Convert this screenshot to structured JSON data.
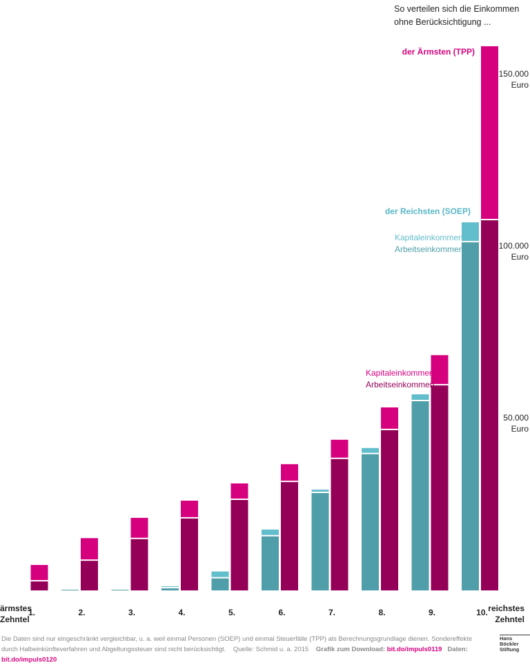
{
  "chart_data": {
    "type": "grouped-stacked-bar",
    "title": "So verteilen sich die Einkommen ohne Berücksichtigung ...",
    "categories": [
      "1.",
      "2.",
      "3.",
      "4.",
      "5.",
      "6.",
      "7.",
      "8.",
      "9.",
      "10."
    ],
    "x_start_label": [
      "ärmstes",
      "Zehntel"
    ],
    "x_end_label": [
      "reichstes",
      "Zehntel"
    ],
    "ylim": [
      0,
      160000
    ],
    "yticks": [
      {
        "value": 50000,
        "label": "50.000"
      },
      {
        "value": 100000,
        "label": "100.000"
      },
      {
        "value": 150000,
        "label": "150.000"
      }
    ],
    "y_unit": "Euro",
    "grid": false,
    "groups": [
      {
        "name": "der Reichsten (SOEP)",
        "color": "#58b7c6",
        "series": [
          {
            "name": "Arbeitseinkommen",
            "color": "#4f9ea9",
            "values": [
              0,
              200,
              400,
              800,
              3700,
              15900,
              28500,
              39800,
              55200,
              101400
            ]
          },
          {
            "name": "Kapitaleinkommen",
            "color": "#62bdcc",
            "values": [
              0,
              0,
              100,
              400,
              1800,
              1800,
              800,
              1600,
              1800,
              5600
            ]
          }
        ]
      },
      {
        "name": "der Ärmsten (TPP)",
        "color": "#d6007f",
        "series": [
          {
            "name": "Arbeitseinkommen",
            "color": "#940058",
            "values": [
              2800,
              8800,
              15100,
              21100,
              26500,
              31700,
              38400,
              46800,
              59800,
              107800
            ]
          },
          {
            "name": "Kapitaleinkommen",
            "color": "#d6007f",
            "values": [
              4600,
              6400,
              6000,
              5000,
              4600,
              5000,
              5400,
              6400,
              8600,
              50400
            ]
          }
        ]
      }
    ]
  },
  "footer": {
    "note": "Die Daten sind nur eingeschränkt vergleichbar, u. a. weil einmal Personen (SOEP) und einmal Steuerfälle (TPP) als Berechnungsgrundlage dienen. Sondereffekte durch Halbeinkünfteverfahren und Abgeltungssteuer sind nicht berücksichtigt.",
    "source": "Quelle: Schmid u. a. 2015",
    "download_label": "Grafik zum Download:",
    "download_link": "bit.do/impuls0119",
    "data_label": "Daten:",
    "data_link": "bit.do/impuls0120",
    "logo": [
      "Hans Böckler",
      "Stiftung"
    ]
  }
}
